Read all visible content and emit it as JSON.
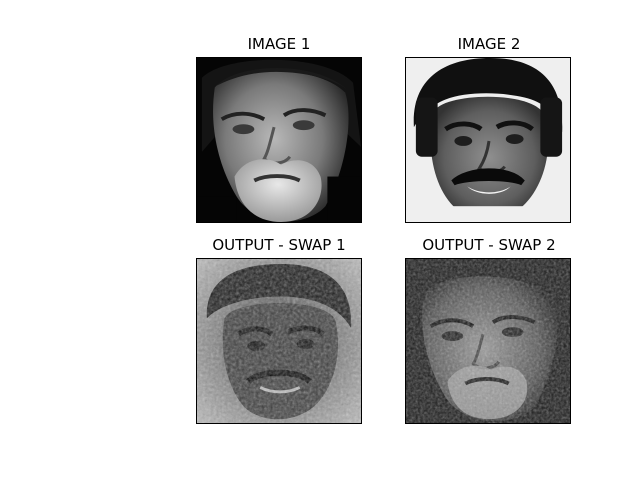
{
  "figure": {
    "panels": [
      {
        "title": "IMAGE 1",
        "content": "grayscale face portrait, dark background"
      },
      {
        "title": "IMAGE 2",
        "content": "grayscale face portrait, light background"
      },
      {
        "title": "OUTPUT - SWAP 1",
        "content": "phase-swapped reconstruction resembling face of image 2"
      },
      {
        "title": "OUTPUT - SWAP 2",
        "content": "phase-swapped reconstruction resembling face of image 1"
      }
    ]
  }
}
